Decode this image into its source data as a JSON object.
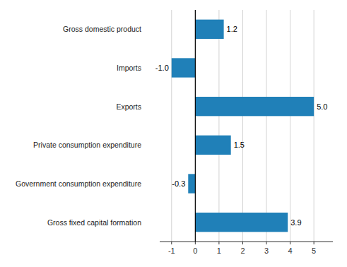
{
  "chart_data": {
    "type": "bar",
    "orientation": "horizontal",
    "categories": [
      "Gross fixed capital formation",
      "Government consumption expenditure",
      "Private consumption expenditure",
      "Exports",
      "Imports",
      "Gross domestic product"
    ],
    "values": [
      3.9,
      -0.3,
      1.5,
      5.0,
      -1.0,
      1.2
    ],
    "value_labels": [
      "3.9",
      "-0.3",
      "1.5",
      "5.0",
      "-1.0",
      "1.2"
    ],
    "data_labels": true,
    "color": "#2080b8",
    "xlim": [
      -1.5,
      5.8
    ],
    "xticks": [
      -1,
      0,
      1,
      2,
      3,
      4,
      5
    ],
    "grid": true
  }
}
